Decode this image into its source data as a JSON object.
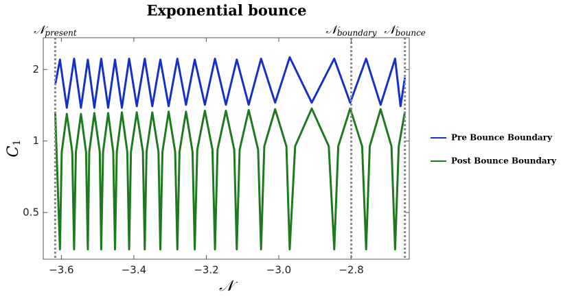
{
  "chart_data": {
    "type": "line",
    "title": "Exponential bounce",
    "x_label": "𝒩",
    "y_label": "C",
    "y_label_subscript": "1",
    "xlim": [
      -3.65,
      -2.64
    ],
    "ylim": [
      0.318,
      2.72
    ],
    "log_y": true,
    "xticks": [
      {
        "value": -3.6,
        "label": "−3.6"
      },
      {
        "value": -3.4,
        "label": "−3.4"
      },
      {
        "value": -3.2,
        "label": "−3.2"
      },
      {
        "value": -3.0,
        "label": "−3.0"
      },
      {
        "value": -2.8,
        "label": "−2.8"
      }
    ],
    "yticks": [
      0.5,
      1,
      2
    ],
    "legend": "right",
    "annotations": [
      {
        "x": -3.617,
        "symbol": "𝒩",
        "subscript": "present"
      },
      {
        "x": -2.8,
        "symbol": "𝒩",
        "subscript": "boundary"
      },
      {
        "x": -2.652,
        "symbol": "𝒩",
        "subscript": "bounce"
      }
    ],
    "series": [
      {
        "name": "Pre Bounce Boundary",
        "color": "#1530c8",
        "x": [
          -3.617,
          -3.604,
          -3.585,
          -3.565,
          -3.546,
          -3.527,
          -3.509,
          -3.49,
          -3.471,
          -3.452,
          -3.433,
          -3.413,
          -3.392,
          -3.37,
          -3.349,
          -3.327,
          -3.304,
          -3.28,
          -3.256,
          -3.232,
          -3.204,
          -3.176,
          -3.146,
          -3.116,
          -3.083,
          -3.049,
          -3.01,
          -2.97,
          -2.909,
          -2.847,
          -2.803,
          -2.759,
          -2.719,
          -2.679,
          -2.664,
          -2.652
        ],
        "values": [
          1.72,
          2.2,
          1.38,
          2.22,
          1.38,
          2.2,
          1.38,
          2.22,
          1.38,
          2.2,
          1.38,
          2.22,
          1.4,
          2.22,
          1.4,
          2.2,
          1.4,
          2.22,
          1.42,
          2.2,
          1.42,
          2.22,
          1.42,
          2.2,
          1.42,
          2.22,
          1.45,
          2.25,
          1.45,
          2.22,
          1.45,
          2.22,
          1.42,
          2.22,
          1.4,
          1.85
        ]
      },
      {
        "name": "Post Bounce Boundary",
        "color": "#1e7a1e",
        "x": [
          -3.617,
          -3.604,
          -3.599,
          -3.585,
          -3.57,
          -3.565,
          -3.56,
          -3.546,
          -3.532,
          -3.527,
          -3.523,
          -3.509,
          -3.494,
          -3.49,
          -3.485,
          -3.471,
          -3.457,
          -3.452,
          -3.447,
          -3.433,
          -3.418,
          -3.413,
          -3.408,
          -3.392,
          -3.375,
          -3.37,
          -3.365,
          -3.349,
          -3.332,
          -3.327,
          -3.321,
          -3.304,
          -3.286,
          -3.28,
          -3.274,
          -3.256,
          -3.238,
          -3.232,
          -3.225,
          -3.204,
          -3.183,
          -3.176,
          -3.169,
          -3.146,
          -3.123,
          -3.116,
          -3.108,
          -3.083,
          -3.057,
          -3.049,
          -3.04,
          -3.01,
          -2.979,
          -2.97,
          -2.955,
          -2.909,
          -2.862,
          -2.847,
          -2.836,
          -2.803,
          -2.77,
          -2.759,
          -2.749,
          -2.719,
          -2.689,
          -2.679,
          -2.669,
          -2.652
        ],
        "values": [
          1.33,
          0.35,
          0.9,
          1.3,
          0.9,
          0.35,
          0.9,
          1.3,
          0.9,
          0.35,
          0.9,
          1.31,
          0.9,
          0.35,
          0.9,
          1.31,
          0.9,
          0.35,
          0.9,
          1.32,
          0.9,
          0.35,
          0.9,
          1.32,
          0.9,
          0.35,
          0.9,
          1.32,
          0.9,
          0.35,
          0.9,
          1.33,
          0.9,
          0.35,
          0.9,
          1.33,
          0.9,
          0.35,
          0.92,
          1.34,
          0.92,
          0.35,
          0.92,
          1.34,
          0.92,
          0.35,
          0.92,
          1.35,
          0.92,
          0.35,
          0.95,
          1.36,
          0.95,
          0.35,
          0.95,
          1.37,
          0.95,
          0.35,
          0.95,
          1.37,
          0.95,
          0.35,
          0.95,
          1.36,
          0.95,
          0.35,
          0.95,
          1.33
        ]
      }
    ]
  }
}
